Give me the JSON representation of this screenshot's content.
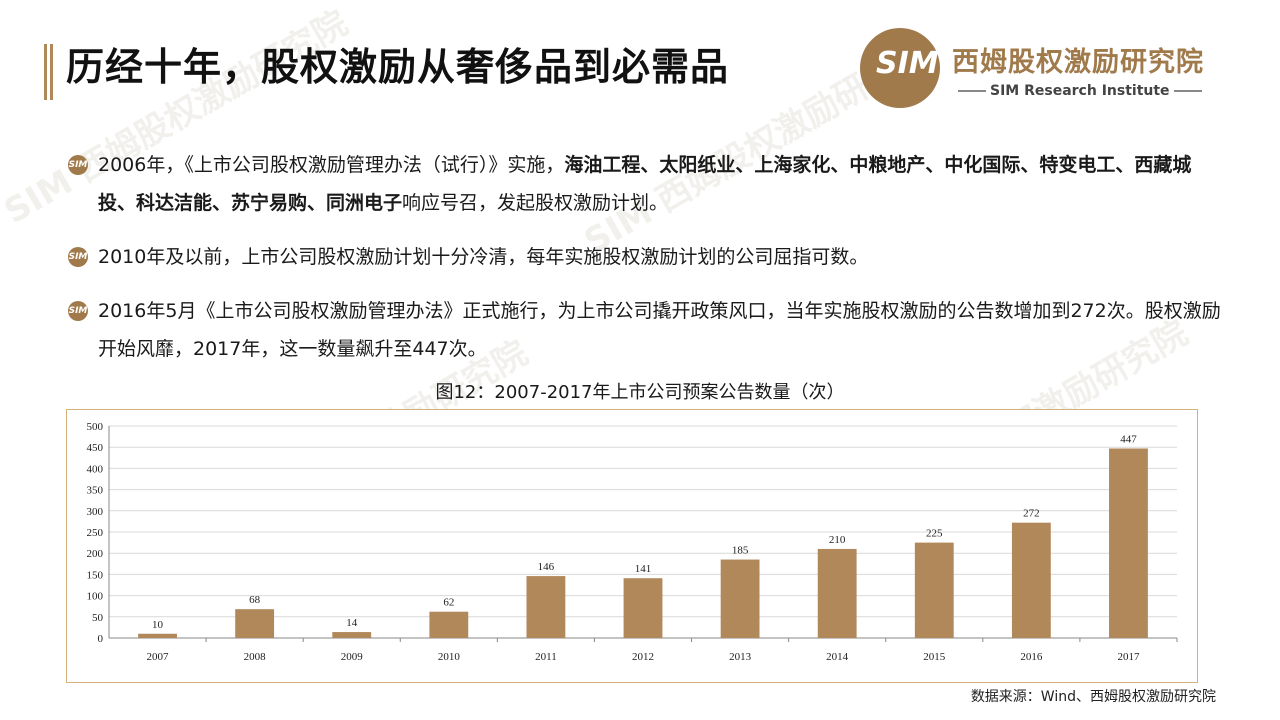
{
  "title": "历经十年，股权激励从奢侈品到必需品",
  "logo": {
    "mark": "SIM",
    "name_cn": "西姆股权激励研究院",
    "name_en": "SIM Research Institute"
  },
  "bullets": [
    {
      "parts": [
        {
          "text": "2006年，《上市公司股权激励管理办法（试行）》实施，",
          "bold": false
        },
        {
          "text": "海油工程、太阳纸业、上海家化、中粮地产、中化国际、特变电工、西藏城投、科达洁能、苏宁易购、同洲电子",
          "bold": true
        },
        {
          "text": "响应号召，发起股权激励计划。",
          "bold": false
        }
      ]
    },
    {
      "parts": [
        {
          "text": "2010年及以前，上市公司股权激励计划十分冷清，每年实施股权激励计划的公司屈指可数。",
          "bold": false
        }
      ]
    },
    {
      "parts": [
        {
          "text": "2016年5月《上市公司股权激励管理办法》正式施行，为上市公司撬开政策风口，当年实施股权激励的公告数增加到272次。股权激励开始风靡，2017年，这一数量飙升至447次。",
          "bold": false
        }
      ]
    }
  ],
  "chart_title": "图12：2007-2017年上市公司预案公告数量（次）",
  "source": "数据来源：Wind、西姆股权激励研究院",
  "colors": {
    "accent": "#b1885a",
    "bar": "#b1885a",
    "grid": "#d9d9d9"
  },
  "chart_data": {
    "type": "bar",
    "title": "图12：2007-2017年上市公司预案公告数量（次）",
    "categories": [
      "2007",
      "2008",
      "2009",
      "2010",
      "2011",
      "2012",
      "2013",
      "2014",
      "2015",
      "2016",
      "2017"
    ],
    "values": [
      10,
      68,
      14,
      62,
      146,
      141,
      185,
      210,
      225,
      272,
      447
    ],
    "yticks": [
      0,
      50,
      100,
      150,
      200,
      250,
      300,
      350,
      400,
      450,
      500
    ],
    "ylim": [
      0,
      500
    ],
    "xlabel": "",
    "ylabel": "",
    "grid": true
  }
}
